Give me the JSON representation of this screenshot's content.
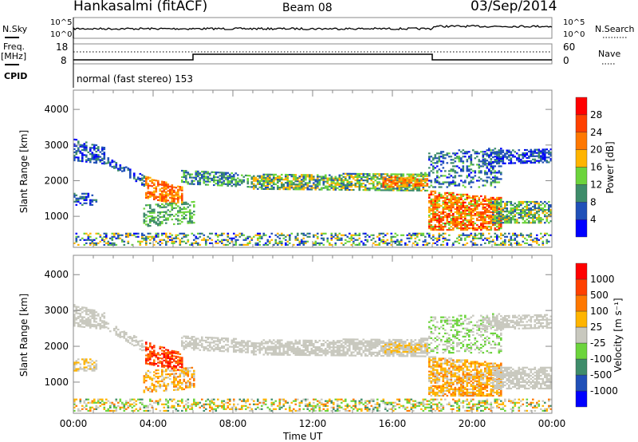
{
  "header": {
    "station": "Hankasalmi (fitACF)",
    "beam": "Beam 08",
    "date": "03/Sep/2014"
  },
  "top_panels": {
    "nsky_label": "N.Sky",
    "nsearch_label": "N.Search",
    "nsky_ticks": [
      "10^5",
      "10^0"
    ],
    "freq_label": "Freq.",
    "freq_unit": "[MHz]",
    "freq_ticks": [
      "18",
      "8"
    ],
    "nave_label": "Nave",
    "nave_ticks": [
      "60",
      "0"
    ],
    "cpid_label": "CPID",
    "cpid_value": "normal (fast stereo) 153"
  },
  "chart_data": {
    "type": "scatter",
    "x_range_hours": [
      0,
      24
    ],
    "x_ticks": [
      "00:00",
      "04:00",
      "08:00",
      "12:00",
      "16:00",
      "20:00",
      "00:00"
    ],
    "xlabel": "Time UT",
    "ylabel": "Slant Range [km]",
    "ylim": [
      130,
      4540
    ],
    "y_ticks": [
      "1000",
      "2000",
      "3000",
      "4000"
    ],
    "freq_mhz_steps": [
      {
        "t0": 0,
        "t1": 6,
        "f": 10
      },
      {
        "t0": 6,
        "t1": 18,
        "f": 12.8
      },
      {
        "t0": 18,
        "t1": 24,
        "f": 10
      }
    ],
    "nave_level": 38,
    "power_colorbar": {
      "label": "Power [dB]",
      "ticks": [
        "28",
        "24",
        "20",
        "16",
        "12",
        "8",
        "4"
      ],
      "colors": [
        "#0000ff",
        "#2050b8",
        "#3e8c6a",
        "#6cd43c",
        "#ffb400",
        "#ff7800",
        "#ff4000",
        "#ff0000"
      ]
    },
    "velocity_colorbar": {
      "label": "Velocity [m s⁻¹]",
      "ticks": [
        "1000",
        "500",
        "100",
        "25",
        "-25",
        "-100",
        "-500",
        "-1000"
      ],
      "colors": [
        "#0000ff",
        "#2050b8",
        "#3e8c6a",
        "#6cd43c",
        "#c8c8be",
        "#ffb400",
        "#ff7800",
        "#ff4000",
        "#ff0000"
      ]
    },
    "echo_regions": [
      {
        "t0": 0,
        "t1": 1.6,
        "r_start": [
          2550,
          3150
        ],
        "r_end": [
          2450,
          2900
        ],
        "power": [
          2,
          10
        ],
        "vel": [
          4,
          4
        ],
        "density": 0.6
      },
      {
        "t0": 0,
        "t1": 1.2,
        "r_start": [
          1300,
          1650
        ],
        "r_end": [
          1300,
          1600
        ],
        "power": [
          2,
          10
        ],
        "vel": [
          4,
          5
        ],
        "density": 0.5
      },
      {
        "t0": 1.5,
        "t1": 3.6,
        "r_start": [
          2500,
          2700
        ],
        "r_end": [
          1800,
          2100
        ],
        "power": [
          2,
          12
        ],
        "vel": [
          4,
          4
        ],
        "density": 0.5
      },
      {
        "t0": 3.6,
        "t1": 5.4,
        "r_start": [
          1500,
          2100
        ],
        "r_end": [
          1300,
          1800
        ],
        "power": [
          16,
          28
        ],
        "vel": [
          6,
          8
        ],
        "density": 0.7
      },
      {
        "t0": 3.5,
        "t1": 6,
        "r_start": [
          700,
          1300
        ],
        "r_end": [
          800,
          1400
        ],
        "power": [
          8,
          16
        ],
        "vel": [
          4,
          6
        ],
        "density": 0.5
      },
      {
        "t0": 5.4,
        "t1": 9,
        "r_start": [
          1900,
          2300
        ],
        "r_end": [
          1800,
          2150
        ],
        "power": [
          4,
          16
        ],
        "vel": [
          4,
          4
        ],
        "density": 0.6
      },
      {
        "t0": 9,
        "t1": 17.8,
        "r_start": [
          1750,
          2150
        ],
        "r_end": [
          1700,
          2200
        ],
        "power": [
          6,
          20
        ],
        "vel": [
          4,
          4
        ],
        "density": 0.7
      },
      {
        "t0": 15.5,
        "t1": 17.8,
        "r_start": [
          1800,
          2100
        ],
        "r_end": [
          1850,
          2050
        ],
        "power": [
          16,
          26
        ],
        "vel": [
          4,
          5
        ],
        "density": 0.6
      },
      {
        "t0": 17.8,
        "t1": 21.5,
        "r_start": [
          600,
          1700
        ],
        "r_end": [
          600,
          1500
        ],
        "power": [
          14,
          30
        ],
        "vel": [
          4,
          6
        ],
        "density": 0.75
      },
      {
        "t0": 17.8,
        "t1": 21.5,
        "r_start": [
          1800,
          2800
        ],
        "r_end": [
          1800,
          2900
        ],
        "power": [
          2,
          14
        ],
        "vel": [
          3,
          4
        ],
        "density": 0.35
      },
      {
        "t0": 21,
        "t1": 24,
        "r_start": [
          800,
          1400
        ],
        "r_end": [
          800,
          1400
        ],
        "power": [
          6,
          18
        ],
        "vel": [
          4,
          4
        ],
        "density": 0.65
      },
      {
        "t0": 20.5,
        "t1": 24,
        "r_start": [
          2450,
          2800
        ],
        "r_end": [
          2500,
          2900
        ],
        "power": [
          2,
          10
        ],
        "vel": [
          4,
          4
        ],
        "density": 0.6
      },
      {
        "t0": 0,
        "t1": 24,
        "r_start": [
          180,
          520
        ],
        "r_end": [
          180,
          520
        ],
        "power": [
          2,
          20
        ],
        "vel": [
          2,
          6
        ],
        "density": 0.4
      }
    ]
  }
}
